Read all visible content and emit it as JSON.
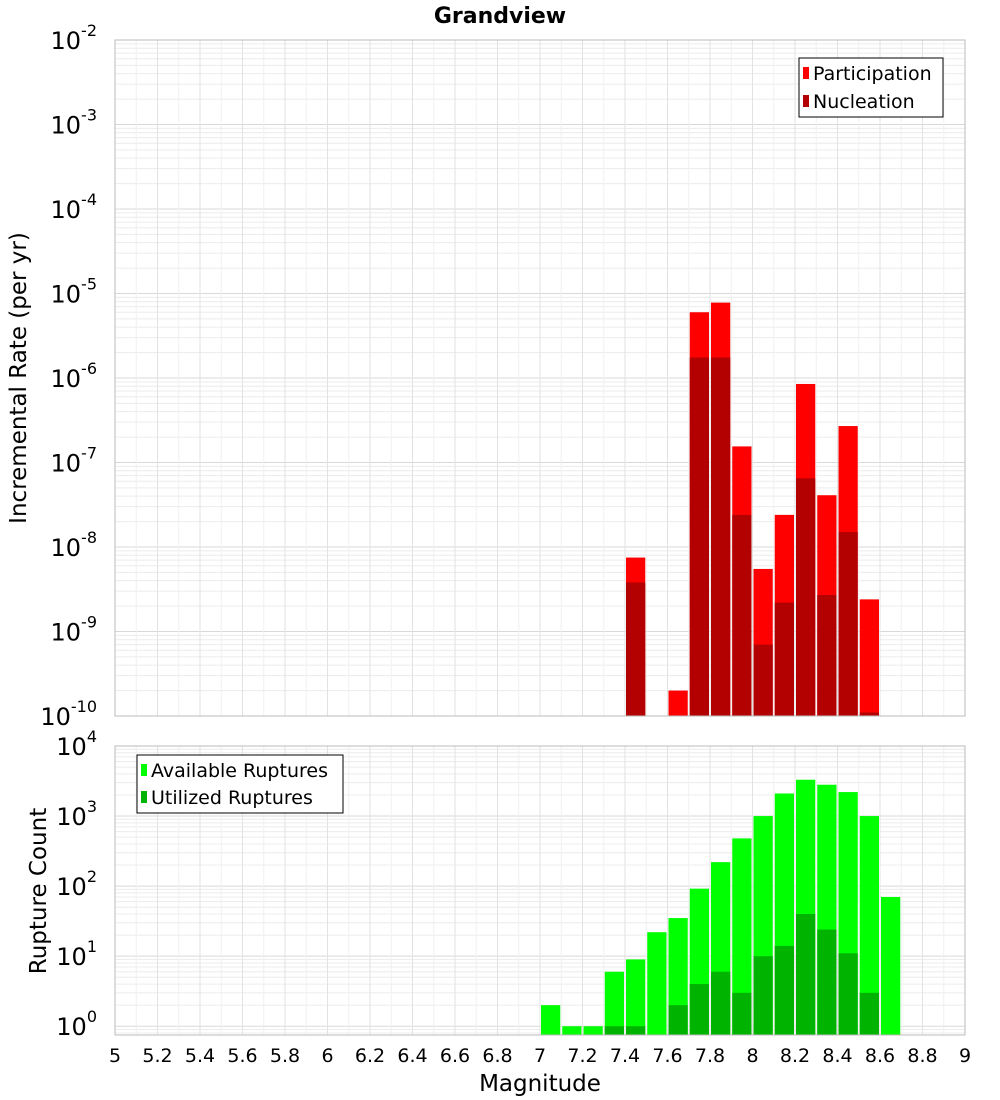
{
  "chart_data": [
    {
      "type": "bar",
      "title": "Grandview",
      "xlabel": "",
      "ylabel": "Incremental Rate (per yr)",
      "yscale": "log",
      "xlim": [
        5,
        9
      ],
      "ylim": [
        1e-10,
        0.01
      ],
      "ytick_exponents": [
        "-2",
        "-3",
        "-4",
        "-5",
        "-6",
        "-7",
        "-8",
        "-9",
        "-10"
      ],
      "grid": true,
      "legend_position": "top-right",
      "bin_width": 0.1,
      "colors": {
        "Participation": "#ff0000",
        "Nucleation": "#b30000"
      },
      "series": [
        {
          "name": "Participation",
          "x": [
            7.45,
            7.65,
            7.75,
            7.85,
            7.95,
            8.05,
            8.15,
            8.25,
            8.35,
            8.45,
            8.55
          ],
          "values": [
            7.5e-09,
            2e-10,
            6e-06,
            7.8e-06,
            1.55e-07,
            5.5e-09,
            2.4e-08,
            8.5e-07,
            4.1e-08,
            2.7e-07,
            2.4e-09
          ]
        },
        {
          "name": "Nucleation",
          "x": [
            7.45,
            7.75,
            7.85,
            7.95,
            8.05,
            8.15,
            8.25,
            8.35,
            8.45,
            8.55
          ],
          "values": [
            3.8e-09,
            1.75e-06,
            1.75e-06,
            2.4e-08,
            7e-10,
            2.2e-09,
            6.5e-08,
            2.7e-09,
            1.5e-08,
            1.1e-10
          ]
        }
      ]
    },
    {
      "type": "bar",
      "xlabel": "Magnitude",
      "ylabel": "Rupture Count",
      "yscale": "log",
      "xlim": [
        5,
        9
      ],
      "ylim": [
        0.75,
        10000
      ],
      "ytick_exponents": [
        "4",
        "3",
        "2",
        "1",
        "0"
      ],
      "xticks": [
        "5",
        "5.2",
        "5.4",
        "5.6",
        "5.8",
        "6",
        "6.2",
        "6.4",
        "6.6",
        "6.8",
        "7",
        "7.2",
        "7.4",
        "7.6",
        "7.8",
        "8",
        "8.2",
        "8.4",
        "8.6",
        "8.8",
        "9"
      ],
      "grid": true,
      "legend_position": "top-left",
      "bin_width": 0.1,
      "colors": {
        "Available Ruptures": "#00ff00",
        "Utilized Ruptures": "#00b300"
      },
      "series": [
        {
          "name": "Available Ruptures",
          "x": [
            7.05,
            7.15,
            7.25,
            7.35,
            7.45,
            7.55,
            7.65,
            7.75,
            7.85,
            7.95,
            8.05,
            8.15,
            8.25,
            8.35,
            8.45,
            8.55,
            8.65
          ],
          "values": [
            2,
            1,
            1,
            6,
            9,
            22,
            35,
            92,
            220,
            480,
            1000,
            2100,
            3300,
            2800,
            2200,
            1000,
            70
          ]
        },
        {
          "name": "Utilized Ruptures",
          "x": [
            7.35,
            7.45,
            7.65,
            7.75,
            7.85,
            7.95,
            8.05,
            8.15,
            8.25,
            8.35,
            8.45,
            8.55
          ],
          "values": [
            1,
            1,
            2,
            4,
            6,
            3,
            10,
            14,
            40,
            24,
            11,
            3
          ]
        }
      ]
    }
  ]
}
